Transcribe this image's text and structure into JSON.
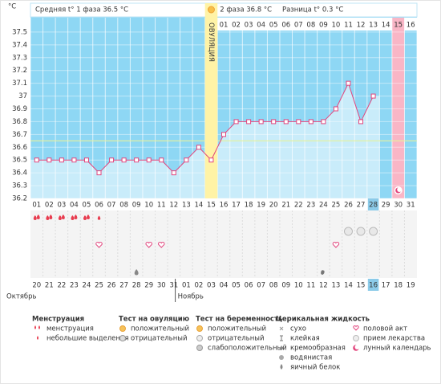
{
  "chart_data": {
    "type": "line",
    "y_unit": "°C",
    "header": {
      "phase1": "Средняя t° 1 фаза 36.5 °C",
      "phase2": "2 фаза 36.8 °C",
      "difference": "Разница t° 0.3 °C"
    },
    "ovulation_label": "ОВУЛЯЦИЯ",
    "ovulation_day": 15,
    "highlight_day": 30,
    "today_day": 28,
    "categories": [
      "01",
      "02",
      "03",
      "04",
      "05",
      "06",
      "07",
      "08",
      "09",
      "10",
      "11",
      "12",
      "13",
      "14",
      "15",
      "16",
      "17",
      "18",
      "19",
      "20",
      "21",
      "22",
      "23",
      "24",
      "25",
      "26",
      "27",
      "28",
      "29",
      "30",
      "31"
    ],
    "phase2_labels": [
      "01",
      "02",
      "03",
      "04",
      "05",
      "06",
      "07",
      "08",
      "09",
      "10",
      "11",
      "12",
      "13",
      "14",
      "15",
      "16"
    ],
    "values": [
      36.5,
      36.5,
      36.5,
      36.5,
      36.5,
      36.4,
      36.5,
      36.5,
      36.5,
      36.5,
      36.5,
      36.4,
      36.5,
      36.6,
      36.5,
      36.7,
      36.8,
      36.8,
      36.8,
      36.8,
      36.8,
      36.8,
      36.8,
      36.8,
      36.9,
      37.1,
      36.8,
      37.0,
      null,
      null,
      null
    ],
    "color": "#e2457d",
    "ylim": [
      36.2,
      37.6
    ],
    "yticks": [
      36.2,
      36.3,
      36.4,
      36.5,
      36.6,
      36.7,
      36.8,
      36.9,
      37,
      37.1,
      37.2,
      37.3,
      37.4,
      37.5
    ],
    "coverline": 36.65,
    "grid": true,
    "dates": [
      "20",
      "21",
      "22",
      "23",
      "24",
      "25",
      "26",
      "27",
      "28",
      "29",
      "30",
      "31",
      "01",
      "02",
      "03",
      "04",
      "05",
      "06",
      "07",
      "08",
      "09",
      "10",
      "11",
      "12",
      "13",
      "14",
      "15",
      "16",
      "17",
      "18",
      "19"
    ],
    "weekend_dates": [
      2,
      3,
      9,
      10,
      16,
      17,
      23,
      24,
      30
    ],
    "months": [
      {
        "label": "Октябрь",
        "start": 0
      },
      {
        "label": "Ноябрь",
        "start": 12
      }
    ],
    "symbols": {
      "menstruation": [
        1,
        2,
        3,
        4,
        5
      ],
      "light_discharge": [
        6
      ],
      "pregnancy_negative": [
        26,
        27,
        28
      ],
      "intercourse": [
        6,
        10,
        11,
        25
      ],
      "egg_white": [
        9
      ],
      "creamy": [
        24
      ],
      "lunar": [
        30
      ]
    }
  },
  "legend": [
    {
      "title": "Менструация",
      "items": [
        "менструация",
        "небольшие выделения"
      ]
    },
    {
      "title": "Тест на овуляцию",
      "items": [
        "положительный",
        "отрицательный"
      ]
    },
    {
      "title": "Тест на беременность",
      "items": [
        "положительный",
        "отрицательный",
        "слабоположительный"
      ]
    },
    {
      "title": "Церикальная жидкость",
      "items": [
        "сухо",
        "клейкая",
        "кремообразная",
        "водянистая",
        "яичный белок"
      ]
    },
    {
      "items": [
        "половой акт",
        "прием лекарства",
        "лунный календарь"
      ]
    }
  ]
}
